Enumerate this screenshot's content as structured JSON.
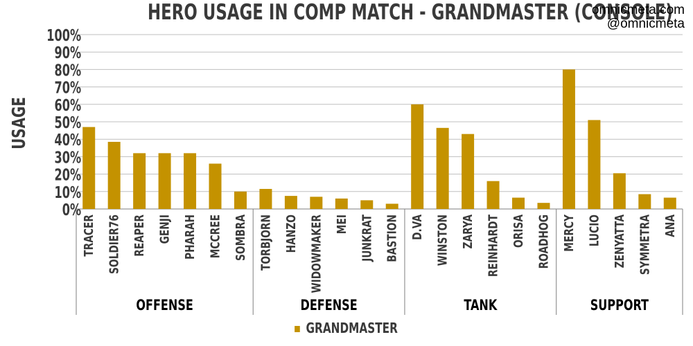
{
  "title": "HERO USAGE IN COMP MATCH - GRANDMASTER (CONSOLE)",
  "credits": [
    "omnicmeta.com",
    "@omnicmeta"
  ],
  "colors": {
    "bar": "#c49200",
    "grid": "#bfbfbf",
    "text": "#3a3a3a",
    "axis": "#7f7f7f"
  },
  "chart_data": {
    "type": "bar",
    "ylabel": "USAGE",
    "ylim": [
      0,
      100
    ],
    "yticks": [
      "0%",
      "10%",
      "20%",
      "30%",
      "40%",
      "50%",
      "60%",
      "70%",
      "80%",
      "90%",
      "100%"
    ],
    "grid": true,
    "legend_position": "bottom",
    "categories": [
      "TRACER",
      "SOLDIER76",
      "REAPER",
      "GENJI",
      "PHARAH",
      "MCCREE",
      "SOMBRA",
      "TORBJORN",
      "HANZO",
      "WIDOWMAKER",
      "MEI",
      "JUNKRAT",
      "BASTION",
      "D.VA",
      "WINSTON",
      "ZARYA",
      "REINHARDT",
      "ORISA",
      "ROADHOG",
      "MERCY",
      "LUCIO",
      "ZENYATTA",
      "SYMMETRA",
      "ANA"
    ],
    "groups": [
      {
        "name": "OFFENSE",
        "count": 7
      },
      {
        "name": "DEFENSE",
        "count": 6
      },
      {
        "name": "TANK",
        "count": 6
      },
      {
        "name": "SUPPORT",
        "count": 5
      }
    ],
    "series": [
      {
        "name": "GRANDMASTER",
        "values": [
          47,
          38.5,
          32,
          32,
          32,
          26,
          10,
          11.5,
          7.5,
          7,
          6,
          5,
          3,
          60,
          46.5,
          43,
          16,
          6.5,
          3.5,
          80,
          51,
          20.5,
          8.5,
          6.5
        ]
      }
    ]
  }
}
